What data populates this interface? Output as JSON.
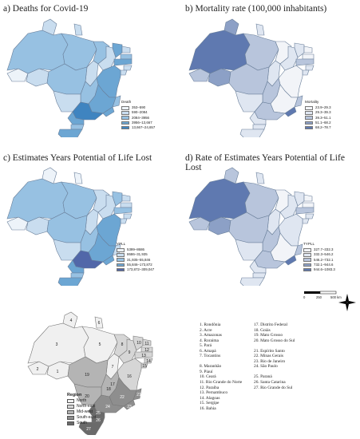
{
  "panels": {
    "a": {
      "title": "a) Deaths for Covid-19",
      "legend_title": "Death",
      "classes": [
        "353–590",
        "590–2084",
        "2084–3956",
        "3956–13,667",
        "13,667–24,657"
      ],
      "colors": [
        "#edf3f9",
        "#c9ddef",
        "#97c1e2",
        "#6ca6d3",
        "#3f84c0"
      ]
    },
    "b": {
      "title": "b) Mortality rate (100,000 inhabitants)",
      "legend_title": "Mortality",
      "classes": [
        "23.9–29.3",
        "29.3–39.3",
        "39.3–51.1",
        "51.1–68.2",
        "68.2–78.7"
      ],
      "colors": [
        "#f2f4f8",
        "#dfe6f1",
        "#b8c5dc",
        "#8ca0c6",
        "#5f79b0"
      ]
    },
    "c": {
      "title": "c) Estimates Years Potential of Life Lost",
      "legend_title": "YPLL",
      "classes": [
        "5399–8686",
        "8686–31,935",
        "31,935–55,846",
        "55,846–173,872",
        "173,872–309,047"
      ],
      "colors": [
        "#edf3f9",
        "#c9ddef",
        "#97c1e2",
        "#6ca6d3",
        "#5167a9"
      ]
    },
    "d": {
      "title": "d) Rate of Estimates Years Potential of Life Lost",
      "legend_title": "TYPLL",
      "classes": [
        "327.7–332.3",
        "332.3–546.2",
        "546.2–732.1",
        "732.1–944.6",
        "944.6–1083.3"
      ],
      "colors": [
        "#f2f4f8",
        "#dfe6f1",
        "#b8c5dc",
        "#8ca0c6",
        "#5f79b0"
      ]
    }
  },
  "scale_bar": {
    "labels": [
      "0",
      "250",
      "500 km"
    ]
  },
  "region_legend": {
    "title": "Region",
    "items": [
      {
        "label": "North",
        "color": "#f0f0f0"
      },
      {
        "label": "North-east",
        "color": "#d6d6d6"
      },
      {
        "label": "Mid-west",
        "color": "#b4b4b4"
      },
      {
        "label": "South-east",
        "color": "#8e8e8e"
      },
      {
        "label": "South",
        "color": "#6a6a6a"
      }
    ]
  },
  "state_list_left": [
    "1.  Rondônia",
    "2.  Acre",
    "3.  Amazonas",
    "4.  Roraima",
    "5.  Pará",
    "6.  Amapá",
    "7.  Tocantins",
    "",
    "8.  Maranhão",
    "9.  Piauí",
    "10. Ceará",
    "11. Rio Grande do Norte",
    "12. Paraíba",
    "13. Pernambuco",
    "14. Alagoas",
    "15. Sergipe",
    "16. Bahia"
  ],
  "state_list_right": [
    "17. Distrito Federal",
    "18. Goiás",
    "19. Mato Grosso",
    "20. Mato Grosso do Sul",
    "",
    "21. Espírito Santo",
    "22. Minas Gerais",
    "23. Rio de Janeiro",
    "24. São Paulo",
    "",
    "25. Paraná",
    "26. Santa Catarina",
    "27. Rio Grande do Sul"
  ],
  "region_map_numbers": [
    "1",
    "2",
    "3",
    "4",
    "5",
    "6",
    "7",
    "8",
    "9",
    "10",
    "11",
    "12",
    "13",
    "14",
    "15",
    "16",
    "17",
    "18",
    "19",
    "20",
    "21",
    "22",
    "23",
    "24",
    "25",
    "26",
    "27"
  ]
}
